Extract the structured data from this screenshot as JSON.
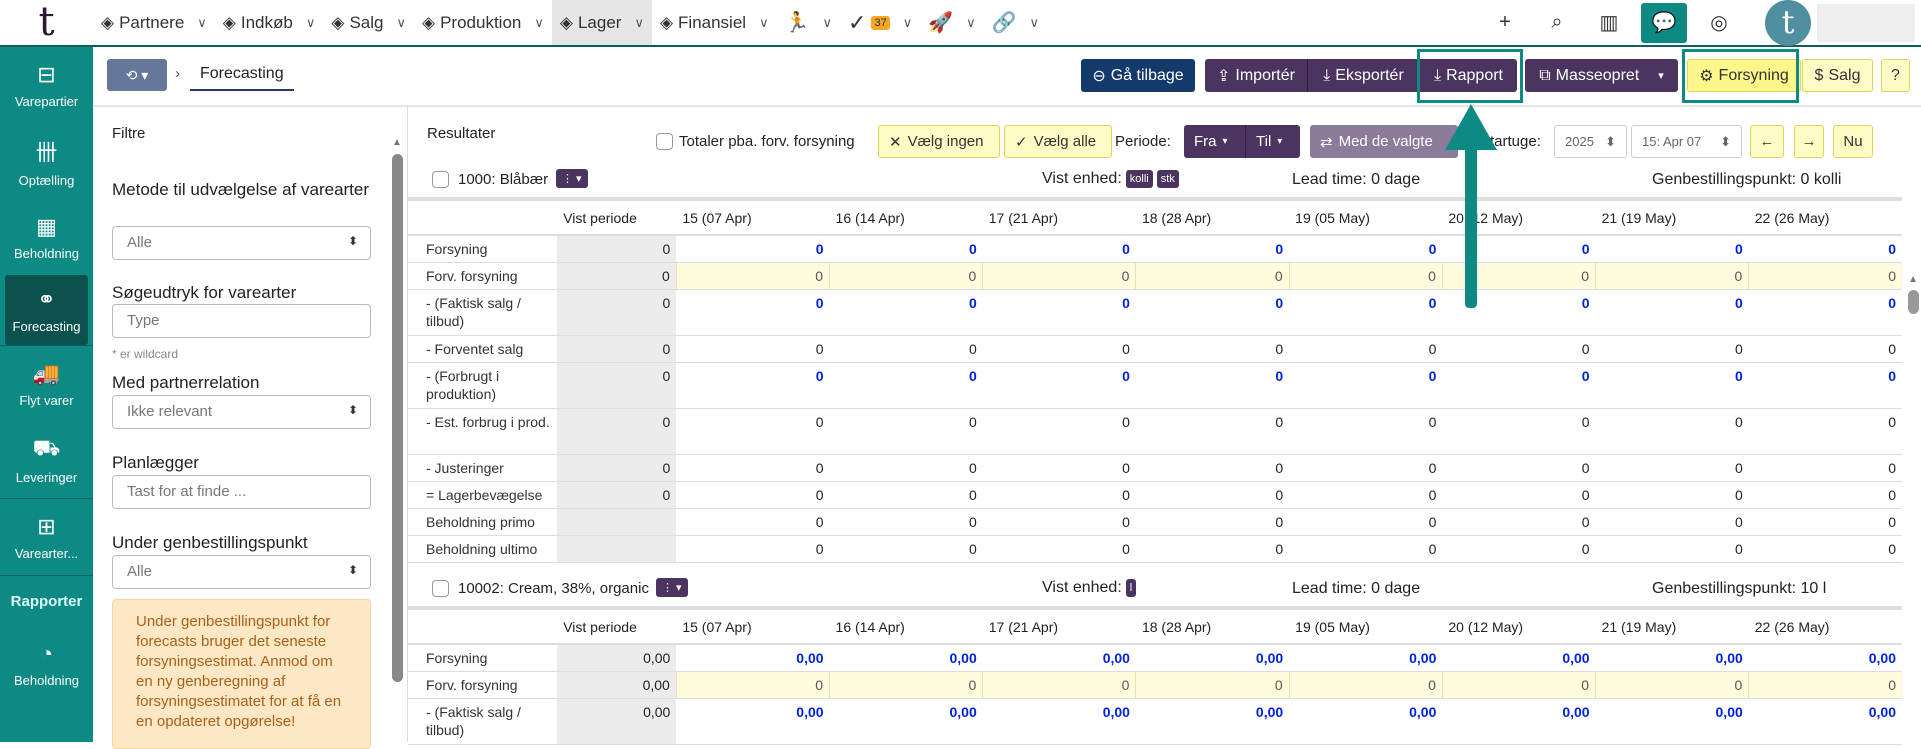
{
  "nav": {
    "items": [
      {
        "label": "Partnere",
        "icon": "handshake-icon"
      },
      {
        "label": "Indkøb",
        "icon": "cart-icon"
      },
      {
        "label": "Salg",
        "icon": "hand-coin-icon"
      },
      {
        "label": "Produktion",
        "icon": "pot-icon"
      },
      {
        "label": "Lager",
        "icon": "warehouse-icon",
        "active": true
      },
      {
        "label": "Finansiel",
        "icon": "coins-icon"
      }
    ],
    "tasks_badge": "37"
  },
  "sidebar": {
    "items": [
      "Varepartier",
      "Optælling",
      "Beholdning",
      "Forecasting",
      "Flyt varer",
      "Leveringer",
      "Varearter..."
    ],
    "section": "Rapporter",
    "report_items": [
      "Beholdning"
    ],
    "active": "Forecasting"
  },
  "breadcrumb": {
    "current": "Forecasting"
  },
  "actions": {
    "back": "Gå tilbage",
    "import": "Importér",
    "export": "Eksportér",
    "report": "Rapport",
    "mass": "Masseopret",
    "supply": "Forsyning",
    "sales": "Salg",
    "help": "?"
  },
  "filters": {
    "title": "Filtre",
    "method_label": "Metode til udvælgelse af varearter",
    "method_value": "Alle",
    "search_label": "Søgeudtryk for varearter",
    "search_placeholder": "Type",
    "wildcard_hint": "* er wildcard",
    "partner_label": "Med partnerrelation",
    "partner_value": "Ikke relevant",
    "planner_label": "Planlægger",
    "planner_placeholder": "Tast for at finde ...",
    "reorder_label": "Under genbestillingspunkt",
    "reorder_value": "Alle",
    "warning": "Under genbestillingspunkt for forecasts bruger det seneste forsyningsestimat. Anmod om en ny genberegning af forsyningsestimatet for at få en en opdateret opgørelse!"
  },
  "results": {
    "title": "Resultater",
    "totals_label": "Totaler pba. forv. forsyning",
    "select_none": "Vælg ingen",
    "select_all": "Vælg alle",
    "period_label": "Periode:",
    "from": "Fra",
    "to": "Til",
    "with_selected": "Med de valgte",
    "start_week_label": "Startuge:",
    "year": "2025",
    "week": "15: Apr 07",
    "prev": "←",
    "next": "→",
    "now": "Nu"
  },
  "columns": [
    "Vist periode",
    "15 (07 Apr)",
    "16 (14 Apr)",
    "17 (21 Apr)",
    "18 (28 Apr)",
    "19 (05 May)",
    "20 (12 May)",
    "21 (19 May)",
    "22 (26 May)"
  ],
  "items": [
    {
      "name": "1000: Blåbær",
      "unit_label": "Vist enhed:",
      "units": [
        "kolli",
        "stk"
      ],
      "lead_time": "Lead time: 0 dage",
      "reorder": "Genbestillingspunkt: 0 kolli",
      "rows": [
        {
          "label": "Forsyning",
          "type": "num",
          "vp": "0",
          "values": [
            "0",
            "0",
            "0",
            "0",
            "0",
            "0",
            "0",
            "0"
          ]
        },
        {
          "label": "Forv. forsyning",
          "type": "fc",
          "vp": "0",
          "values": [
            "0",
            "0",
            "0",
            "0",
            "0",
            "0",
            "0",
            "0"
          ]
        },
        {
          "label": "- (Faktisk salg / tilbud)",
          "type": "num",
          "vp": "0",
          "values": [
            "0",
            "0",
            "0",
            "0",
            "0",
            "0",
            "0",
            "0"
          ]
        },
        {
          "label": "- Forventet salg",
          "type": "plain",
          "vp": "0",
          "values": [
            "0",
            "0",
            "0",
            "0",
            "0",
            "0",
            "0",
            "0"
          ]
        },
        {
          "label": "- (Forbrugt i produktion)",
          "type": "num",
          "vp": "0",
          "values": [
            "0",
            "0",
            "0",
            "0",
            "0",
            "0",
            "0",
            "0"
          ]
        },
        {
          "label": "- Est. forbrug i prod.",
          "type": "plain",
          "vp": "0",
          "values": [
            "0",
            "0",
            "0",
            "0",
            "0",
            "0",
            "0",
            "0"
          ]
        },
        {
          "label": "- Justeringer",
          "type": "plain",
          "vp": "0",
          "values": [
            "0",
            "0",
            "0",
            "0",
            "0",
            "0",
            "0",
            "0"
          ]
        },
        {
          "label": "= Lagerbevægelse",
          "type": "plain",
          "vp": "0",
          "values": [
            "0",
            "0",
            "0",
            "0",
            "0",
            "0",
            "0",
            "0"
          ]
        },
        {
          "label": "Beholdning primo",
          "type": "plain",
          "vp": "",
          "values": [
            "0",
            "0",
            "0",
            "0",
            "0",
            "0",
            "0",
            "0"
          ]
        },
        {
          "label": "Beholdning ultimo",
          "type": "plain",
          "vp": "",
          "values": [
            "0",
            "0",
            "0",
            "0",
            "0",
            "0",
            "0",
            "0"
          ]
        }
      ]
    },
    {
      "name": "10002: Cream, 38%, organic",
      "unit_label": "Vist enhed:",
      "units": [
        "l"
      ],
      "lead_time": "Lead time: 0 dage",
      "reorder": "Genbestillingspunkt: 10 l",
      "rows": [
        {
          "label": "Forsyning",
          "type": "num",
          "vp": "0,00",
          "values": [
            "0,00",
            "0,00",
            "0,00",
            "0,00",
            "0,00",
            "0,00",
            "0,00",
            "0,00"
          ]
        },
        {
          "label": "Forv. forsyning",
          "type": "fc",
          "vp": "0,00",
          "values": [
            "0",
            "0",
            "0",
            "0",
            "0",
            "0",
            "0",
            "0"
          ]
        },
        {
          "label": "- (Faktisk salg / tilbud)",
          "type": "num",
          "vp": "0,00",
          "values": [
            "0,00",
            "0,00",
            "0,00",
            "0,00",
            "0,00",
            "0,00",
            "0,00",
            "0,00"
          ]
        }
      ]
    }
  ],
  "colors": {
    "teal": "#0e8a84",
    "purple": "#4b3560",
    "navy": "#143a6b",
    "link_blue": "#0022dd"
  }
}
